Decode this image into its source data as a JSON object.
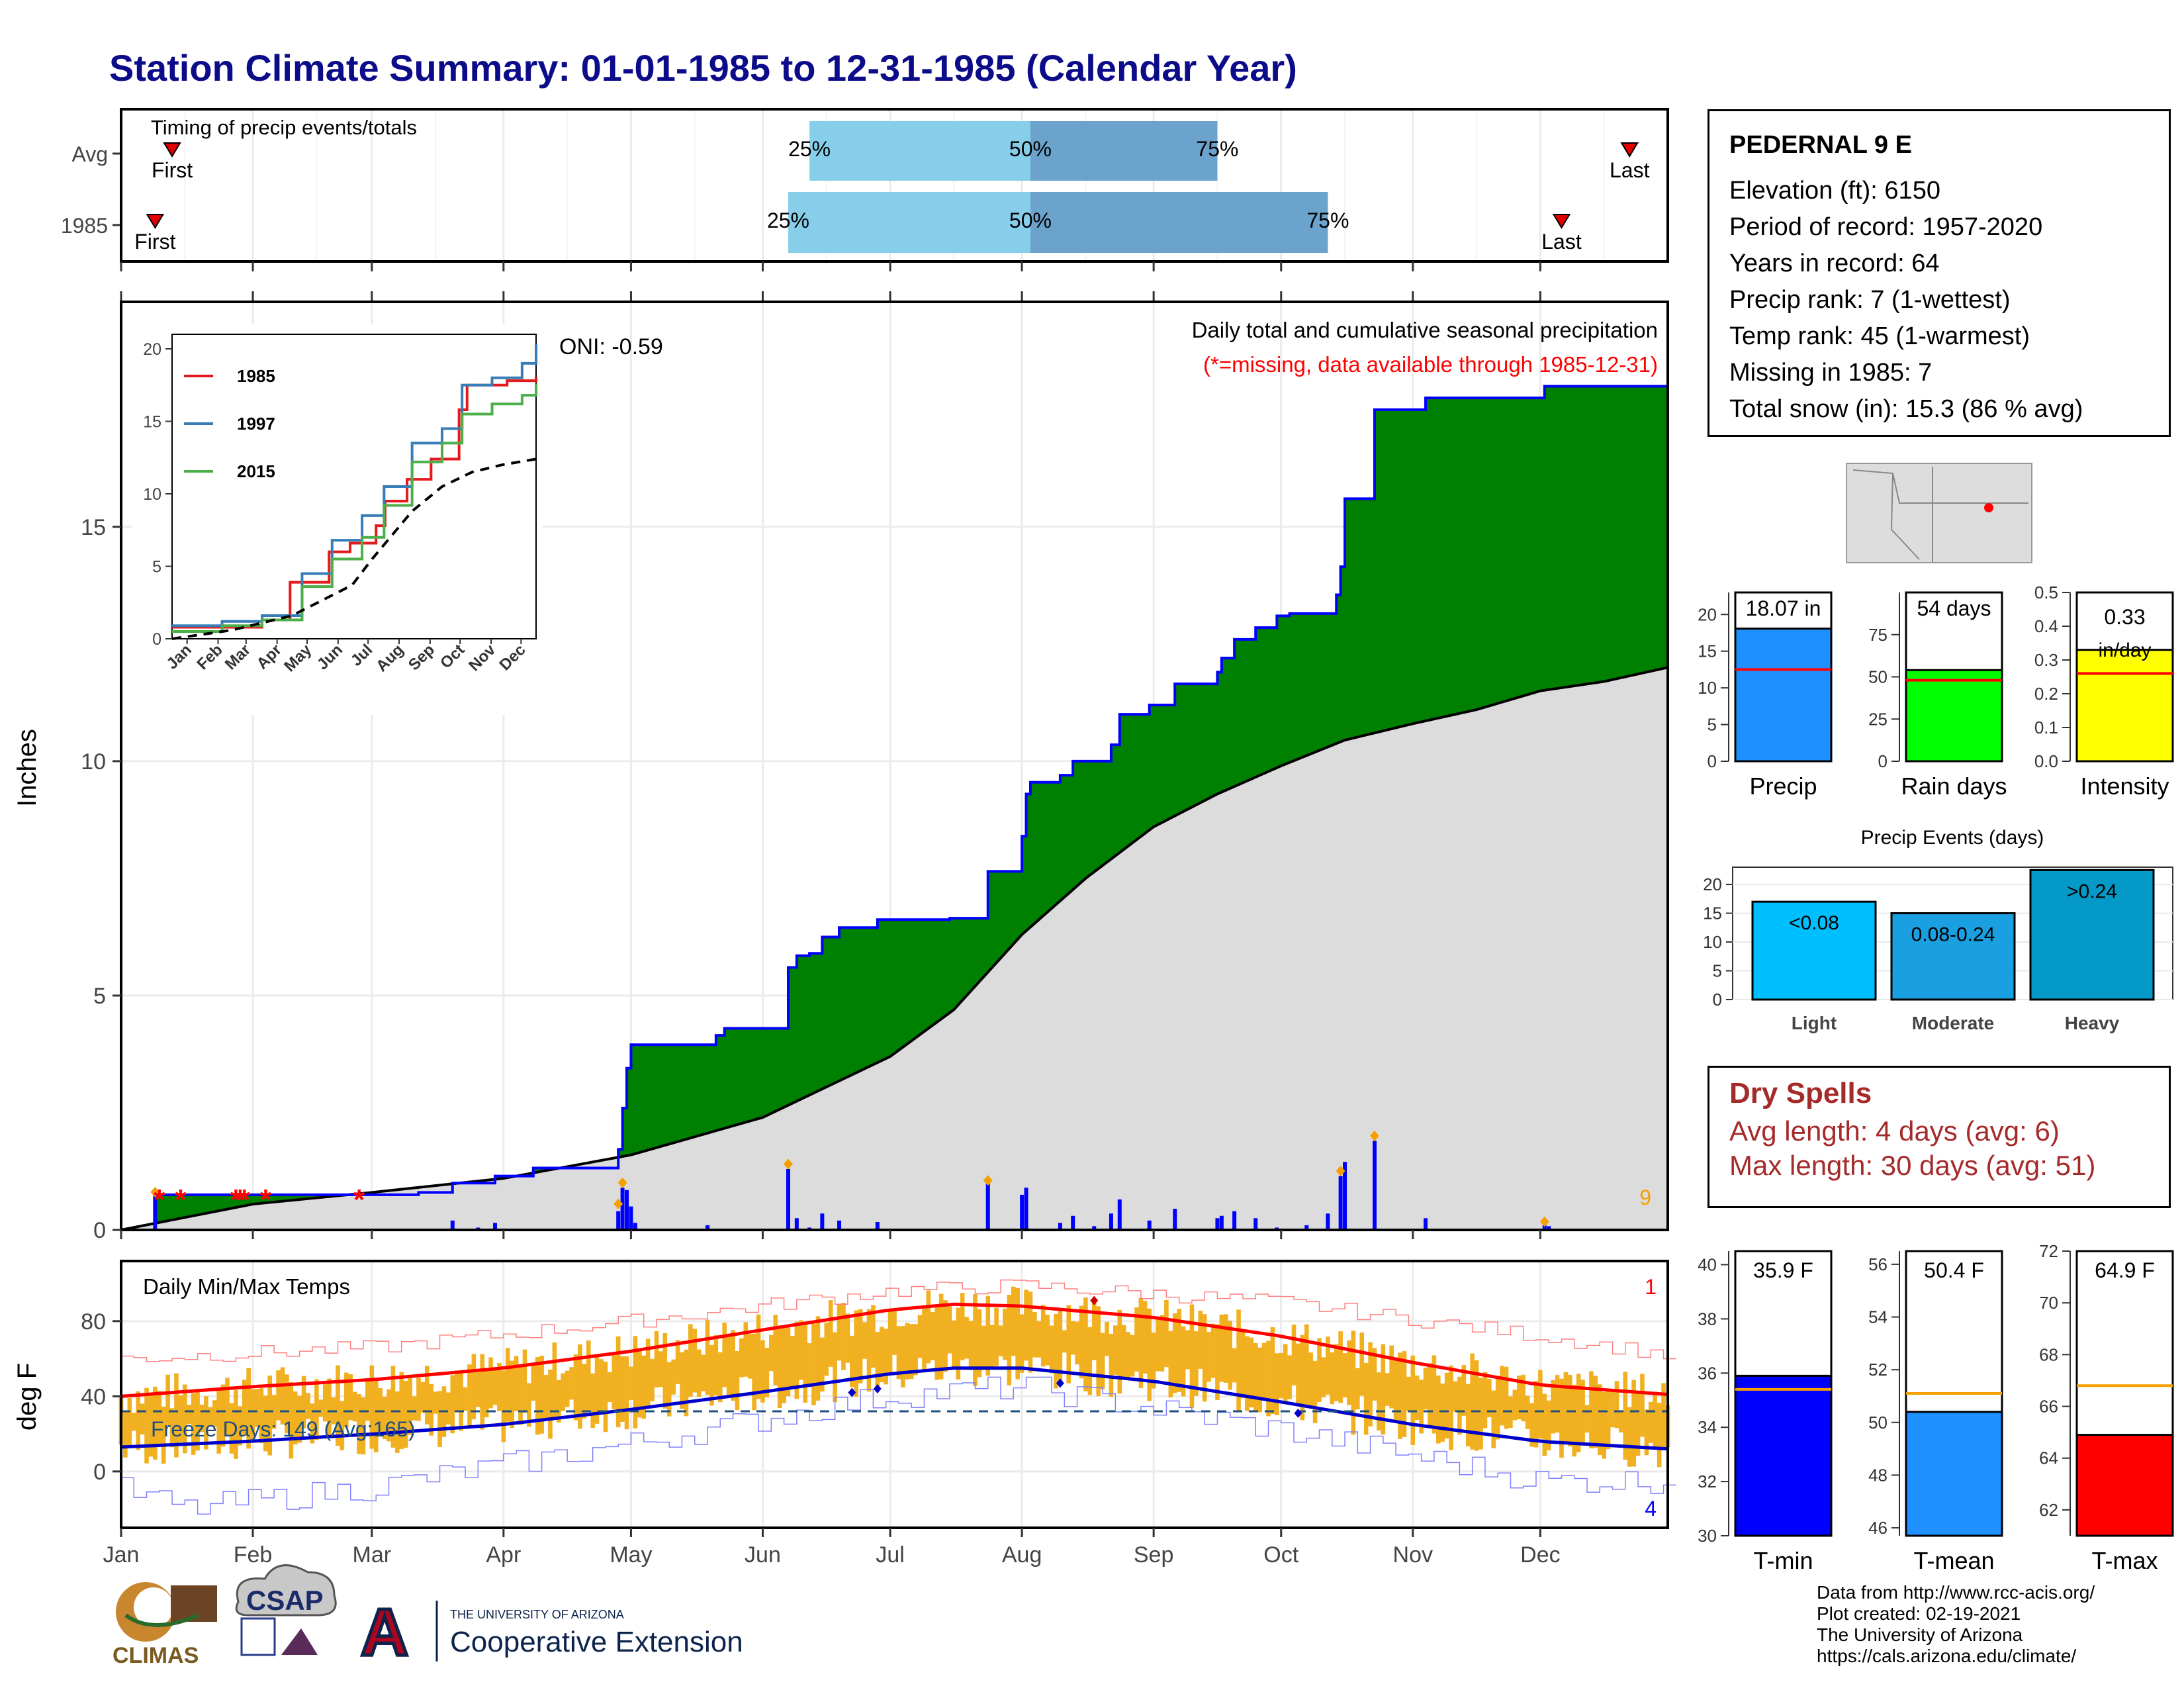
{
  "title": "Station Climate Summary: 01-01-1985 to 12-31-1985 (Calendar Year)",
  "timing": {
    "label": "Timing of precip events/totals",
    "rows": [
      {
        "label": "Avg",
        "first": 12,
        "q25": 162,
        "q50": 214,
        "q75": 258,
        "last": 355
      },
      {
        "label": "1985",
        "first": 8,
        "q25": 157,
        "q50": 214,
        "q75": 284,
        "last": 339
      }
    ],
    "first_label": "First",
    "last_label": "Last",
    "q25_label": "25%",
    "q50_label": "50%",
    "q75_label": "75%"
  },
  "precip_panel": {
    "ylabel": "Inches",
    "caption": "Daily total and cumulative seasonal precipitation",
    "missing_note": "(*=missing, data available through 1985-12-31)",
    "oni": "ONI: -0.59",
    "count_label": "9",
    "ylim": [
      0,
      19.8
    ],
    "yticks": [
      "0",
      "5",
      "10",
      "15"
    ],
    "missing_days": [
      9,
      14,
      27,
      28,
      29,
      34,
      56
    ]
  },
  "inset": {
    "legend": [
      "1985",
      "1997",
      "2015"
    ],
    "yticks": [
      "0",
      "5",
      "10",
      "15",
      "20"
    ],
    "months": [
      "Jan",
      "Feb",
      "Mar",
      "Apr",
      "May",
      "Jun",
      "Jul",
      "Aug",
      "Sep",
      "Oct",
      "Nov",
      "Dec"
    ]
  },
  "temp_panel": {
    "ylabel": "deg F",
    "title": "Daily Min/Max Temps",
    "freeze": "Freeze Days: 149 (Avg:165)",
    "count_hi": "1",
    "count_lo": "4",
    "yticks": [
      "0",
      "40",
      "80"
    ],
    "ylim": [
      -30,
      112
    ]
  },
  "months": [
    "Jan",
    "Feb",
    "Mar",
    "Apr",
    "May",
    "Jun",
    "Jul",
    "Aug",
    "Sep",
    "Oct",
    "Nov",
    "Dec"
  ],
  "station": {
    "name": "PEDERNAL 9 E",
    "lines": [
      "Elevation (ft): 6150",
      "Period of record: 1957-2020",
      "Years in record: 64",
      "Precip rank: 7 (1-wettest)",
      "Temp rank: 45 (1-warmest)",
      "Missing in 1985: 7",
      "Total snow (in): 15.3 (86 % avg)"
    ]
  },
  "mini_bars": {
    "precip": {
      "label": "Precip",
      "value_label": "18.07 in",
      "yticks": [
        "0",
        "5",
        "10",
        "15",
        "20"
      ]
    },
    "rain_days": {
      "label": "Rain days",
      "value_label": "54 days",
      "yticks": [
        "0",
        "25",
        "50",
        "75"
      ]
    },
    "intensity": {
      "label": "Intensity",
      "value_label": "0.33",
      "unit": "in/day",
      "yticks": [
        "0.0",
        "0.1",
        "0.2",
        "0.3",
        "0.4",
        "0.5"
      ]
    }
  },
  "precip_events": {
    "title": "Precip Events (days)",
    "yticks": [
      "0",
      "5",
      "10",
      "15",
      "20"
    ],
    "bars": [
      {
        "label": "Light",
        "bin": "<0.08"
      },
      {
        "label": "Moderate",
        "bin": "0.08-0.24"
      },
      {
        "label": "Heavy",
        "bin": ">0.24"
      }
    ]
  },
  "dry_spells": {
    "title": "Dry Spells",
    "avg": "Avg length: 4 days (avg: 6)",
    "max": "Max length: 30 days (avg: 51)"
  },
  "temp_bars": {
    "tmin": {
      "label": "T-min",
      "value_label": "35.9 F",
      "yticks": [
        "30",
        "32",
        "34",
        "36",
        "38",
        "40"
      ]
    },
    "tmean": {
      "label": "T-mean",
      "value_label": "50.4 F",
      "yticks": [
        "46",
        "48",
        "50",
        "52",
        "54",
        "56"
      ]
    },
    "tmax": {
      "label": "T-max",
      "value_label": "64.9 F",
      "yticks": [
        "62",
        "64",
        "66",
        "68",
        "70",
        "72"
      ]
    }
  },
  "credits": [
    "Data from http://www.rcc-acis.org/",
    "Plot created: 02-19-2021",
    "The University of Arizona",
    "https://cals.arizona.edu/climate/"
  ],
  "logos": {
    "climas": "CLIMAS",
    "csap": "CSAP",
    "ua_small": "THE UNIVERSITY OF ARIZONA",
    "ua_big": "Cooperative Extension"
  },
  "colors": {
    "title": "#0c0c8a",
    "green": "#008000",
    "blue": "#0000ff",
    "gray": "#dcdcdc",
    "orange": "#f0b020",
    "red": "#ff0000",
    "skyblue": "#87ceeb",
    "steel": "#6ca3cc",
    "dry": "#a52a2a"
  },
  "chart_data": [
    {
      "type": "area",
      "title": "Daily total and cumulative seasonal precipitation",
      "ylabel": "Inches",
      "ylim": [
        0,
        19.8
      ],
      "cumulative_1985_steps": [
        [
          0,
          0
        ],
        [
          8,
          0.75
        ],
        [
          70,
          0.8
        ],
        [
          78,
          1.0
        ],
        [
          88,
          1.15
        ],
        [
          97,
          1.32
        ],
        [
          117,
          1.72
        ],
        [
          118,
          2.6
        ],
        [
          119,
          3.45
        ],
        [
          120,
          3.95
        ],
        [
          132,
          3.95
        ],
        [
          140,
          4.15
        ],
        [
          142,
          4.3
        ],
        [
          156,
          4.3
        ],
        [
          157,
          5.6
        ],
        [
          159,
          5.85
        ],
        [
          162,
          5.9
        ],
        [
          165,
          6.25
        ],
        [
          169,
          6.45
        ],
        [
          178,
          6.62
        ],
        [
          195,
          6.65
        ],
        [
          204,
          7.65
        ],
        [
          212,
          8.4
        ],
        [
          213,
          9.3
        ],
        [
          214,
          9.55
        ],
        [
          221,
          9.7
        ],
        [
          224,
          10.0
        ],
        [
          233,
          10.35
        ],
        [
          235,
          11.0
        ],
        [
          242,
          11.2
        ],
        [
          248,
          11.65
        ],
        [
          258,
          11.9
        ],
        [
          259,
          12.2
        ],
        [
          262,
          12.6
        ],
        [
          267,
          12.85
        ],
        [
          272,
          13.1
        ],
        [
          275,
          13.15
        ],
        [
          286,
          13.55
        ],
        [
          287,
          14.15
        ],
        [
          288,
          15.6
        ],
        [
          295,
          17.5
        ],
        [
          300,
          17.5
        ],
        [
          307,
          17.75
        ],
        [
          330,
          17.75
        ],
        [
          335,
          18.0
        ],
        [
          364,
          18.07
        ]
      ],
      "cumulative_average": [
        [
          0,
          0
        ],
        [
          31,
          0.55
        ],
        [
          59,
          0.8
        ],
        [
          90,
          1.1
        ],
        [
          120,
          1.6
        ],
        [
          151,
          2.4
        ],
        [
          181,
          3.7
        ],
        [
          196,
          4.7
        ],
        [
          212,
          6.3
        ],
        [
          227,
          7.5
        ],
        [
          243,
          8.6
        ],
        [
          258,
          9.3
        ],
        [
          273,
          9.9
        ],
        [
          288,
          10.45
        ],
        [
          304,
          10.8
        ],
        [
          319,
          11.1
        ],
        [
          334,
          11.5
        ],
        [
          349,
          11.7
        ],
        [
          364,
          12.0
        ]
      ],
      "daily_precip": [
        [
          8,
          0.75
        ],
        [
          78,
          0.2
        ],
        [
          84,
          0.05
        ],
        [
          88,
          0.15
        ],
        [
          117,
          0.4
        ],
        [
          118,
          0.9
        ],
        [
          119,
          0.85
        ],
        [
          120,
          0.5
        ],
        [
          121,
          0.15
        ],
        [
          138,
          0.1
        ],
        [
          157,
          1.3
        ],
        [
          159,
          0.25
        ],
        [
          162,
          0.05
        ],
        [
          165,
          0.35
        ],
        [
          169,
          0.2
        ],
        [
          178,
          0.17
        ],
        [
          204,
          1.0
        ],
        [
          212,
          0.75
        ],
        [
          213,
          0.9
        ],
        [
          221,
          0.15
        ],
        [
          224,
          0.3
        ],
        [
          229,
          0.08
        ],
        [
          233,
          0.35
        ],
        [
          235,
          0.65
        ],
        [
          242,
          0.2
        ],
        [
          248,
          0.45
        ],
        [
          258,
          0.25
        ],
        [
          259,
          0.3
        ],
        [
          262,
          0.4
        ],
        [
          267,
          0.25
        ],
        [
          272,
          0.05
        ],
        [
          279,
          0.1
        ],
        [
          284,
          0.35
        ],
        [
          287,
          1.15
        ],
        [
          288,
          1.45
        ],
        [
          295,
          1.9
        ],
        [
          307,
          0.25
        ],
        [
          335,
          0.1
        ],
        [
          336,
          0.08
        ]
      ]
    },
    {
      "type": "line",
      "title": "Inset cumulative precipitation",
      "ylim": [
        0,
        20
      ],
      "series": [
        {
          "name": "1985",
          "x": [
            0,
            60,
            90,
            118,
            157,
            178,
            204,
            213,
            235,
            259,
            287,
            295,
            335,
            364
          ],
          "values": [
            0.8,
            0.8,
            1.3,
            3.9,
            6.0,
            6.6,
            7.8,
            9.5,
            11.0,
            12.4,
            15.8,
            17.5,
            17.8,
            18.07
          ]
        },
        {
          "name": "1997",
          "x": [
            0,
            50,
            90,
            130,
            160,
            190,
            212,
            240,
            270,
            290,
            320,
            350,
            364
          ],
          "values": [
            0.9,
            1.2,
            1.6,
            4.5,
            6.8,
            8.5,
            10.5,
            13.5,
            14.5,
            17.5,
            18.0,
            19.0,
            20.3
          ]
        },
        {
          "name": "2015",
          "x": [
            0,
            50,
            90,
            130,
            160,
            190,
            212,
            240,
            270,
            290,
            320,
            350,
            364
          ],
          "values": [
            0.5,
            0.9,
            1.3,
            3.6,
            5.5,
            7.0,
            9.2,
            12.2,
            13.5,
            15.5,
            16.2,
            16.8,
            17.6
          ]
        },
        {
          "name": "",
          "x": [
            0,
            60,
            120,
            180,
            200,
            240,
            270,
            300,
            330,
            364
          ],
          "values": [
            0,
            0.6,
            1.6,
            3.7,
            5.5,
            8.8,
            10.5,
            11.5,
            12.0,
            12.4
          ]
        }
      ]
    },
    {
      "type": "line",
      "title": "Daily Min/Max Temps",
      "ylabel": "deg F",
      "ylim": [
        -30,
        112
      ],
      "avg_max": {
        "x": [
          0,
          30,
          60,
          90,
          120,
          150,
          181,
          196,
          212,
          243,
          273,
          304,
          334,
          364
        ],
        "values": [
          40,
          45,
          49,
          55,
          64,
          75,
          86,
          89,
          88,
          82,
          72,
          58,
          46,
          41
        ]
      },
      "avg_min": {
        "x": [
          0,
          30,
          60,
          90,
          120,
          150,
          181,
          196,
          212,
          243,
          273,
          304,
          334,
          364
        ],
        "values": [
          13,
          16,
          20,
          25,
          33,
          42,
          52,
          55,
          55,
          48,
          37,
          25,
          16,
          12
        ]
      },
      "record_max": {
        "x": [
          0,
          60,
          120,
          180,
          212,
          273,
          334,
          364
        ],
        "values": [
          60,
          66,
          80,
          96,
          99,
          90,
          72,
          62
        ]
      },
      "record_min": {
        "x": [
          0,
          15,
          60,
          120,
          180,
          212,
          273,
          334,
          364
        ],
        "values": [
          -10,
          -20,
          -8,
          15,
          40,
          45,
          22,
          -5,
          -5
        ]
      },
      "freeze_line": 32
    },
    {
      "type": "bar",
      "title": "Precip",
      "categories": [
        "1985"
      ],
      "values": [
        18.07
      ],
      "average": 12.5,
      "ylim": [
        0,
        23
      ]
    },
    {
      "type": "bar",
      "title": "Rain days",
      "categories": [
        "1985"
      ],
      "values": [
        54
      ],
      "average": 48,
      "ylim": [
        0,
        100
      ]
    },
    {
      "type": "bar",
      "title": "Intensity",
      "categories": [
        "1985"
      ],
      "values": [
        0.33
      ],
      "average": 0.26,
      "ylim": [
        0,
        0.5
      ]
    },
    {
      "type": "bar",
      "title": "Precip Events (days)",
      "categories": [
        "Light",
        "Moderate",
        "Heavy"
      ],
      "values": [
        17,
        15,
        22.5
      ],
      "ylim": [
        0,
        23
      ]
    },
    {
      "type": "bar",
      "title": "T-min",
      "categories": [
        "1985"
      ],
      "values": [
        35.9
      ],
      "average": 35.4,
      "ylim": [
        30,
        40.5
      ]
    },
    {
      "type": "bar",
      "title": "T-mean",
      "categories": [
        "1985"
      ],
      "values": [
        50.4
      ],
      "average": 51.1,
      "ylim": [
        45.7,
        56.5
      ]
    },
    {
      "type": "bar",
      "title": "T-max",
      "categories": [
        "1985"
      ],
      "values": [
        64.9
      ],
      "average": 66.8,
      "ylim": [
        61,
        72
      ]
    }
  ]
}
